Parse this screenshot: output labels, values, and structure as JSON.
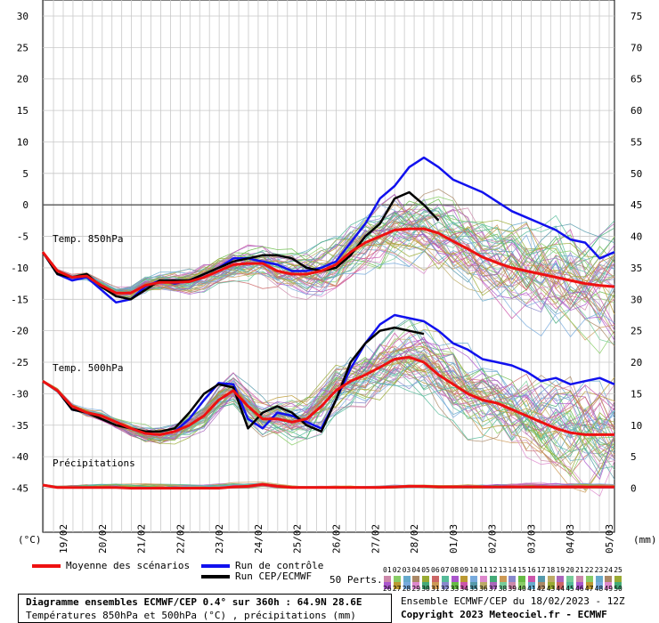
{
  "chart_data": {
    "type": "line",
    "x_labels": [
      "19/02",
      "20/02",
      "21/02",
      "22/02",
      "23/02",
      "24/02",
      "25/02",
      "26/02",
      "27/02",
      "28/02",
      "01/03",
      "02/03",
      "03/03",
      "04/03",
      "05/03"
    ],
    "left_axis": {
      "unit": "(°C)",
      "ticks": [
        30,
        25,
        20,
        15,
        10,
        5,
        0,
        -5,
        -10,
        -15,
        -20,
        -25,
        -30,
        -35,
        -40,
        -45
      ],
      "ylim": [
        -45,
        30
      ]
    },
    "right_axis": {
      "unit": "(mm)",
      "ticks": [
        75,
        70,
        65,
        60,
        55,
        50,
        45,
        40,
        35,
        30,
        25,
        20,
        15,
        10,
        5,
        0
      ],
      "ylim": [
        0,
        75
      ]
    },
    "panels": [
      {
        "label": "Temp. 850hPa",
        "mean": [
          -7.5,
          -10.5,
          -11.5,
          -11.3,
          -12.8,
          -14,
          -14,
          -12.8,
          -12.3,
          -12.3,
          -12.2,
          -11.5,
          -10.5,
          -9.5,
          -9.3,
          -9.3,
          -10.5,
          -11,
          -11,
          -10.5,
          -9.5,
          -7.5,
          -6,
          -5,
          -4,
          -3.8,
          -3.8,
          -4.5,
          -5.8,
          -7,
          -8.3,
          -9.2,
          -10,
          -10.5,
          -11,
          -11.5,
          -12,
          -12.5,
          -12.8,
          -13
        ],
        "control": [
          -7.5,
          -11,
          -12,
          -11.5,
          -13.5,
          -15.5,
          -15,
          -13,
          -12,
          -12.5,
          -12,
          -11,
          -10,
          -8.5,
          -8.5,
          -9,
          -9.5,
          -10.5,
          -10.5,
          -10,
          -9,
          -6,
          -3,
          1,
          3,
          6,
          7.5,
          6,
          4,
          3,
          2,
          0.5,
          -1,
          -2,
          -3,
          -4,
          -5.5,
          -6,
          -8.5,
          -7.5
        ],
        "cep": [
          -7.5,
          -11,
          -11.5,
          -11,
          -13,
          -14.5,
          -15,
          -13.5,
          -12,
          -12,
          -12,
          -11,
          -10,
          -9,
          -8.5,
          -8,
          -8,
          -8.5,
          -10,
          -10.5,
          -10,
          -8,
          -5,
          -3,
          1,
          2,
          0,
          -2.5
        ]
      },
      {
        "label": "Temp. 500hPa",
        "mean": [
          -28,
          -29.5,
          -32,
          -33,
          -33.5,
          -34.5,
          -35.5,
          -36.3,
          -36.5,
          -36,
          -35,
          -33.5,
          -31,
          -29.5,
          -32,
          -34,
          -34,
          -34.5,
          -34,
          -32,
          -29.5,
          -28,
          -27,
          -25.8,
          -24.5,
          -24.2,
          -25,
          -27,
          -28.5,
          -30,
          -31,
          -31.5,
          -32.5,
          -33.5,
          -34.5,
          -35.5,
          -36.2,
          -36.5,
          -36.5,
          -36.5
        ],
        "control": [
          -28,
          -29.5,
          -32.5,
          -33,
          -33.5,
          -34.5,
          -35.5,
          -36.3,
          -36.5,
          -36,
          -34,
          -31,
          -28.3,
          -28.5,
          -34,
          -35.5,
          -33,
          -33.5,
          -34.5,
          -35.5,
          -31,
          -26,
          -22,
          -19,
          -17.5,
          -18,
          -18.5,
          -20,
          -22,
          -23,
          -24.5,
          -25,
          -25.5,
          -26.5,
          -28,
          -27.5,
          -28.5,
          -28,
          -27.5,
          -28.5
        ],
        "cep": [
          -28,
          -29.5,
          -32.5,
          -33,
          -34,
          -35,
          -35.5,
          -36,
          -36,
          -35.5,
          -33,
          -30,
          -28.5,
          -29,
          -35.5,
          -33,
          -32,
          -33,
          -35,
          -36,
          -31,
          -25,
          -22,
          -20,
          -19.5,
          -20,
          -20.5
        ]
      },
      {
        "label": "Précipitations",
        "mean": [
          0.5,
          0.1,
          0.1,
          0.1,
          0.1,
          0.1,
          0,
          0,
          0,
          0,
          0,
          0,
          0,
          0.2,
          0.3,
          0.6,
          0.3,
          0.1,
          0.1,
          0.1,
          0.1,
          0.1,
          0.1,
          0.1,
          0.2,
          0.3,
          0.3,
          0.2,
          0.2,
          0.2,
          0.2,
          0.2,
          0.2,
          0.2,
          0.2,
          0.2,
          0.2,
          0.2,
          0.2,
          0.2
        ]
      }
    ]
  },
  "legend": {
    "mean_label": "Moyenne des scénarios",
    "control_label": "Run de contrôle",
    "cep_label": "Run CEP/ECMWF",
    "perts_label": "50 Perts.",
    "pert_numbers_top": [
      "01",
      "02",
      "03",
      "04",
      "05",
      "06",
      "07",
      "08",
      "09",
      "10",
      "11",
      "12",
      "13",
      "14",
      "15",
      "16",
      "17",
      "18",
      "19",
      "20",
      "21",
      "22",
      "23",
      "24",
      "25"
    ],
    "pert_numbers_bottom": [
      "26",
      "27",
      "28",
      "29",
      "30",
      "31",
      "32",
      "33",
      "34",
      "35",
      "36",
      "37",
      "38",
      "39",
      "40",
      "41",
      "42",
      "43",
      "44",
      "45",
      "46",
      "47",
      "48",
      "49",
      "50"
    ]
  },
  "colors": {
    "mean": "#ee1111",
    "control": "#1111ee",
    "cep": "#000000"
  },
  "info": {
    "title": "Diagramme ensembles ECMWF/CEP 0.4° sur 360h : 64.9N 28.6E",
    "subtitle": "Températures 850hPa et 500hPa (°C) , précipitations (mm)"
  },
  "footer": {
    "run": "Ensemble ECMWF/CEP du 18/02/2023 - 12Z",
    "copyright": "Copyright 2023 Meteociel.fr - ECMWF"
  }
}
